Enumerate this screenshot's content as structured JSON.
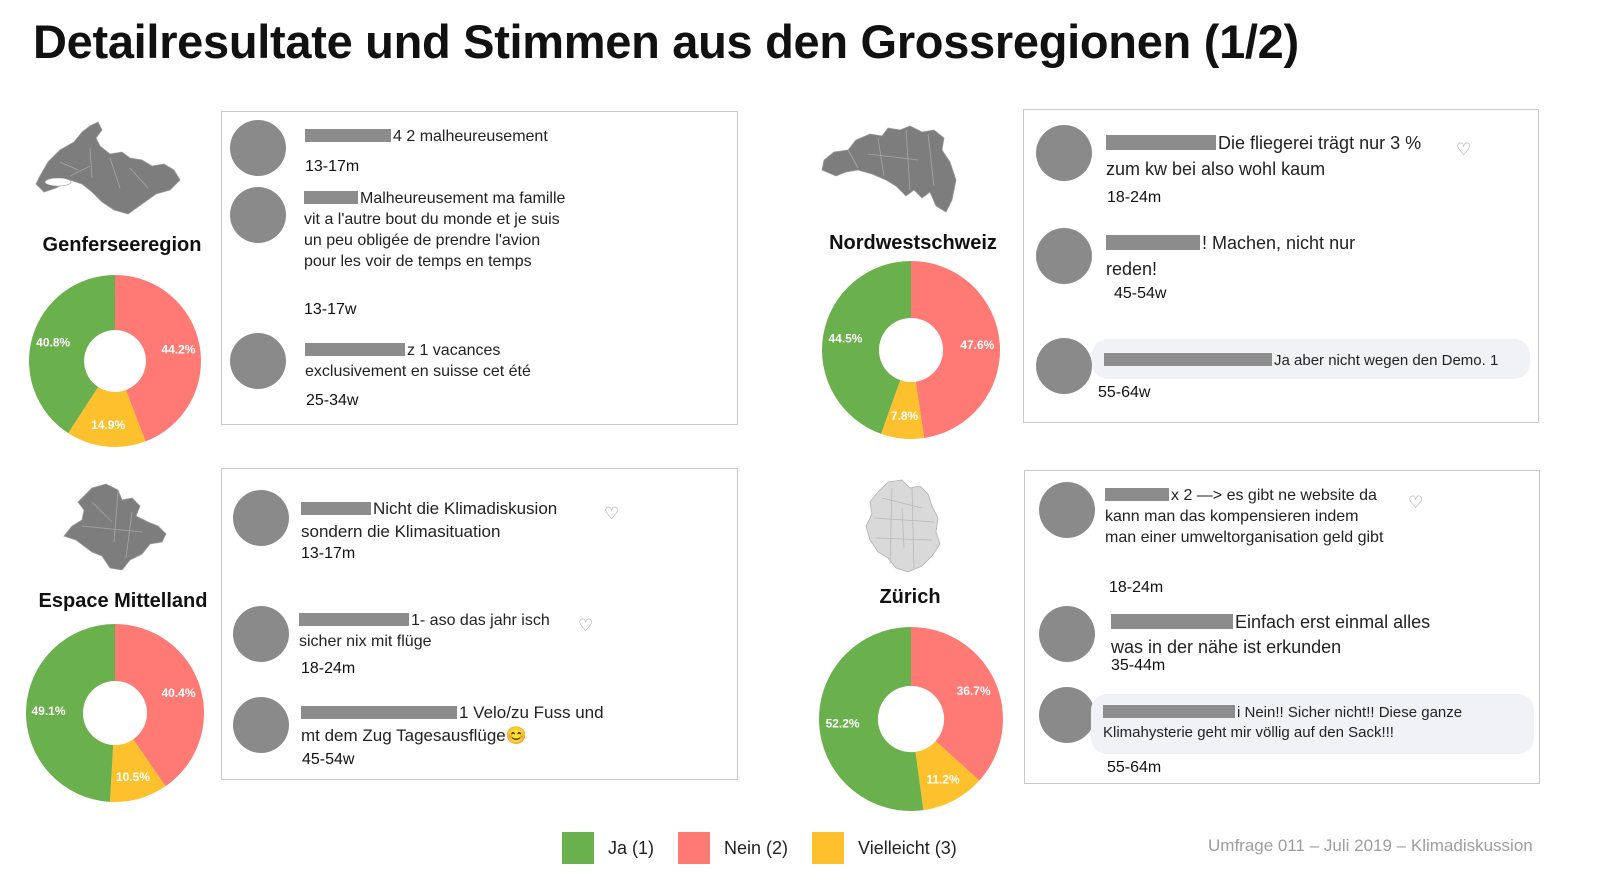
{
  "title": "Detailresultate und Stimmen aus den Grossregionen (1/2)",
  "colors": {
    "ja": "#6ab04c",
    "nein": "#ff7a75",
    "vielleicht": "#fec12e",
    "map": "#7d7d7d"
  },
  "regions": [
    {
      "name": "Genferseeregion",
      "comments": [
        {
          "text": "4 2 malheureusement",
          "meta": "13-17m"
        },
        {
          "text": "Malheureusement ma famille vit a l'autre bout du monde et je suis un peu obligée de prendre l'avion pour les voir de temps en temps",
          "meta": "13-17w"
        },
        {
          "text": "z 1 vacances exclusivement en suisse cet été",
          "meta": "25-34w"
        }
      ]
    },
    {
      "name": "Nordwestschweiz",
      "comments": [
        {
          "text": "Die fliegerei trägt nur 3 % zum kw bei also wohl kaum",
          "meta": "18-24m"
        },
        {
          "text": "! Machen, nicht nur reden!",
          "meta": "45-54w"
        },
        {
          "text": "Ja aber nicht wegen den Demo. 1",
          "meta": "55-64w"
        }
      ]
    },
    {
      "name": "Espace Mittelland",
      "comments": [
        {
          "text": "Nicht die Klimadiskusion sondern die Klimasituation",
          "meta": "13-17m"
        },
        {
          "text": "1- aso das jahr isch sicher nix mit flüge",
          "meta": "18-24m"
        },
        {
          "text": "1 Velo/zu Fuss und mt dem Zug Tagesausflüge😊",
          "meta": "45-54w"
        }
      ]
    },
    {
      "name": "Zürich",
      "comments": [
        {
          "text": "x 2 —> es gibt ne website da kann man das kompensieren indem man einer umweltorganisation geld gibt",
          "meta": "18-24m"
        },
        {
          "text": "Einfach erst einmal alles was in der nähe ist erkunden",
          "meta": "35-44m"
        },
        {
          "text": "i Nein!! Sicher nicht!! Diese ganze Klimahysterie geht mir völlig auf den Sack!!!",
          "meta": "55-64m"
        }
      ]
    }
  ],
  "chart_data": [
    {
      "type": "pie",
      "title": "Genferseeregion",
      "categories": [
        "Ja (1)",
        "Nein (2)",
        "Vielleicht (3)"
      ],
      "values": [
        40.8,
        44.2,
        14.9
      ],
      "labels": [
        "40.8%",
        "44.2%",
        "14.9%"
      ]
    },
    {
      "type": "pie",
      "title": "Nordwestschweiz",
      "categories": [
        "Ja (1)",
        "Nein (2)",
        "Vielleicht (3)"
      ],
      "values": [
        44.5,
        47.6,
        7.8
      ],
      "labels": [
        "44.5%",
        "47.6%",
        "7.8%"
      ]
    },
    {
      "type": "pie",
      "title": "Espace Mittelland",
      "categories": [
        "Ja (1)",
        "Nein (2)",
        "Vielleicht (3)"
      ],
      "values": [
        49.1,
        40.4,
        10.5
      ],
      "labels": [
        "49.1%",
        "40.4%",
        "10.5%"
      ]
    },
    {
      "type": "pie",
      "title": "Zürich",
      "categories": [
        "Ja (1)",
        "Nein (2)",
        "Vielleicht (3)"
      ],
      "values": [
        52.2,
        36.7,
        11.2
      ],
      "labels": [
        "52.2%",
        "36.7%",
        "11.2%"
      ]
    }
  ],
  "legend": [
    {
      "label": "Ja (1)",
      "color": "#6ab04c"
    },
    {
      "label": "Nein (2)",
      "color": "#ff7a75"
    },
    {
      "label": "Vielleicht (3)",
      "color": "#fec12e"
    }
  ],
  "footer": "Umfrage 011 – Juli 2019 – Klimadiskussion"
}
